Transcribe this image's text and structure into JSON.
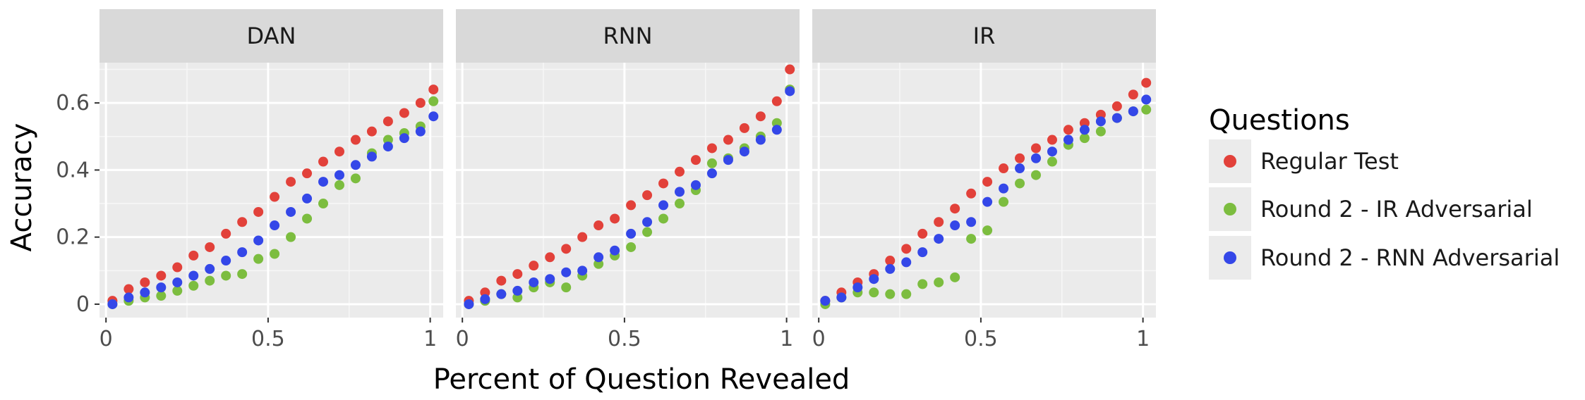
{
  "chart_data": {
    "type": "scatter",
    "xlabel": "Percent of Question Revealed",
    "ylabel": "Accuracy",
    "xlim": [
      -0.02,
      1.04
    ],
    "ylim": [
      -0.04,
      0.72
    ],
    "x_ticks": [
      0,
      0.5,
      1
    ],
    "x_tick_labels": [
      "0",
      "0.5",
      "1"
    ],
    "y_ticks": [
      0,
      0.2,
      0.4,
      0.6
    ],
    "y_tick_labels": [
      "0",
      "0.2",
      "0.4",
      "0.6"
    ],
    "grid": true,
    "legend_placement": "right",
    "legend": {
      "title": "Questions",
      "entries": [
        "Regular Test",
        "Round 2 - IR Adversarial",
        "Round 2 - RNN Adversarial"
      ]
    },
    "colors": {
      "Regular Test": "#e2413a",
      "Round 2 - IR Adversarial": "#7cbd3f",
      "Round 2 - RNN Adversarial": "#3447e8",
      "panel_background": "#ebebeb",
      "strip_background": "#d9d9d9"
    },
    "x": [
      0.02,
      0.07,
      0.12,
      0.17,
      0.22,
      0.27,
      0.32,
      0.37,
      0.42,
      0.47,
      0.52,
      0.57,
      0.62,
      0.67,
      0.72,
      0.77,
      0.82,
      0.87,
      0.92,
      0.97,
      1.01
    ],
    "facets": [
      {
        "name": "DAN",
        "series": [
          {
            "name": "Regular Test",
            "values": [
              0.01,
              0.045,
              0.065,
              0.085,
              0.11,
              0.145,
              0.17,
              0.21,
              0.245,
              0.275,
              0.32,
              0.365,
              0.39,
              0.425,
              0.455,
              0.49,
              0.515,
              0.545,
              0.57,
              0.6,
              0.64
            ]
          },
          {
            "name": "Round 2 - IR Adversarial",
            "values": [
              0.0,
              0.01,
              0.02,
              0.025,
              0.04,
              0.055,
              0.07,
              0.085,
              0.09,
              0.135,
              0.15,
              0.2,
              0.255,
              0.3,
              0.355,
              0.375,
              0.45,
              0.49,
              0.51,
              0.53,
              0.605
            ]
          },
          {
            "name": "Round 2 - RNN Adversarial",
            "values": [
              0.0,
              0.02,
              0.035,
              0.05,
              0.065,
              0.085,
              0.105,
              0.13,
              0.155,
              0.19,
              0.235,
              0.275,
              0.315,
              0.365,
              0.385,
              0.415,
              0.44,
              0.47,
              0.495,
              0.515,
              0.56
            ]
          }
        ]
      },
      {
        "name": "RNN",
        "series": [
          {
            "name": "Regular Test",
            "values": [
              0.01,
              0.035,
              0.07,
              0.09,
              0.115,
              0.14,
              0.165,
              0.2,
              0.235,
              0.255,
              0.295,
              0.325,
              0.36,
              0.395,
              0.43,
              0.465,
              0.49,
              0.525,
              0.56,
              0.605,
              0.7
            ]
          },
          {
            "name": "Round 2 - IR Adversarial",
            "values": [
              0.0,
              0.01,
              0.03,
              0.02,
              0.05,
              0.065,
              0.05,
              0.085,
              0.12,
              0.145,
              0.17,
              0.215,
              0.255,
              0.3,
              0.34,
              0.42,
              0.435,
              0.465,
              0.5,
              0.54,
              0.64
            ]
          },
          {
            "name": "Round 2 - RNN Adversarial",
            "values": [
              0.0,
              0.015,
              0.03,
              0.04,
              0.065,
              0.075,
              0.095,
              0.1,
              0.14,
              0.16,
              0.21,
              0.245,
              0.295,
              0.335,
              0.355,
              0.39,
              0.43,
              0.455,
              0.49,
              0.52,
              0.635
            ]
          }
        ]
      },
      {
        "name": "IR",
        "series": [
          {
            "name": "Regular Test",
            "values": [
              0.01,
              0.035,
              0.065,
              0.09,
              0.13,
              0.165,
              0.21,
              0.245,
              0.285,
              0.33,
              0.365,
              0.405,
              0.435,
              0.465,
              0.49,
              0.52,
              0.54,
              0.565,
              0.59,
              0.625,
              0.66
            ]
          },
          {
            "name": "Round 2 - IR Adversarial",
            "values": [
              0.0,
              0.02,
              0.035,
              0.035,
              0.03,
              0.03,
              0.06,
              0.065,
              0.08,
              0.195,
              0.22,
              0.305,
              0.36,
              0.385,
              0.425,
              0.475,
              0.495,
              0.515,
              0.555,
              0.575,
              0.58
            ]
          },
          {
            "name": "Round 2 - RNN Adversarial",
            "values": [
              0.01,
              0.02,
              0.05,
              0.075,
              0.105,
              0.125,
              0.155,
              0.195,
              0.235,
              0.245,
              0.305,
              0.345,
              0.405,
              0.435,
              0.455,
              0.49,
              0.52,
              0.545,
              0.555,
              0.575,
              0.61
            ]
          }
        ]
      }
    ]
  }
}
